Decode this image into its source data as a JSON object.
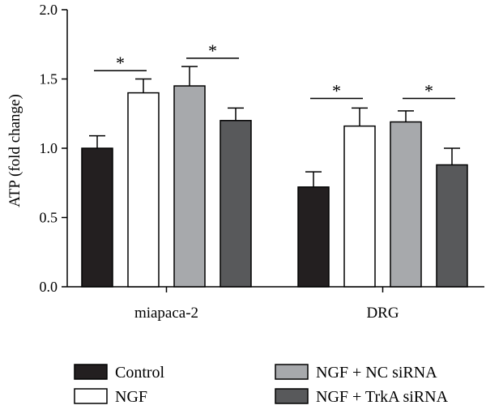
{
  "chart_data": {
    "type": "bar",
    "ylabel": "ATP (fold change)",
    "xlabel": "",
    "ylim": [
      0,
      2.0
    ],
    "yticks": [
      "0.0",
      "0.5",
      "1.0",
      "1.5",
      "2.0"
    ],
    "categories": [
      "miapaca-2",
      "DRG"
    ],
    "series": [
      {
        "name": "Control",
        "color": "#231f20",
        "values": [
          1.0,
          0.72
        ],
        "errors": [
          0.09,
          0.11
        ]
      },
      {
        "name": "NGF",
        "color": "#ffffff",
        "values": [
          1.4,
          1.16
        ],
        "errors": [
          0.1,
          0.13
        ]
      },
      {
        "name": "NGF + NC siRNA",
        "color": "#a7a9ac",
        "values": [
          1.45,
          1.19
        ],
        "errors": [
          0.14,
          0.08
        ]
      },
      {
        "name": "NGF + TrkA siRNA",
        "color": "#58595b",
        "values": [
          1.2,
          0.88
        ],
        "errors": [
          0.09,
          0.12
        ]
      }
    ],
    "significance": [
      {
        "category": 0,
        "from": 0,
        "to": 1,
        "y": 1.56,
        "label": "*"
      },
      {
        "category": 0,
        "from": 2,
        "to": 3,
        "y": 1.65,
        "label": "*"
      },
      {
        "category": 1,
        "from": 0,
        "to": 1,
        "y": 1.36,
        "label": "*"
      },
      {
        "category": 1,
        "from": 2,
        "to": 3,
        "y": 1.36,
        "label": "*"
      }
    ],
    "legend_position": "bottom",
    "grid": false
  }
}
